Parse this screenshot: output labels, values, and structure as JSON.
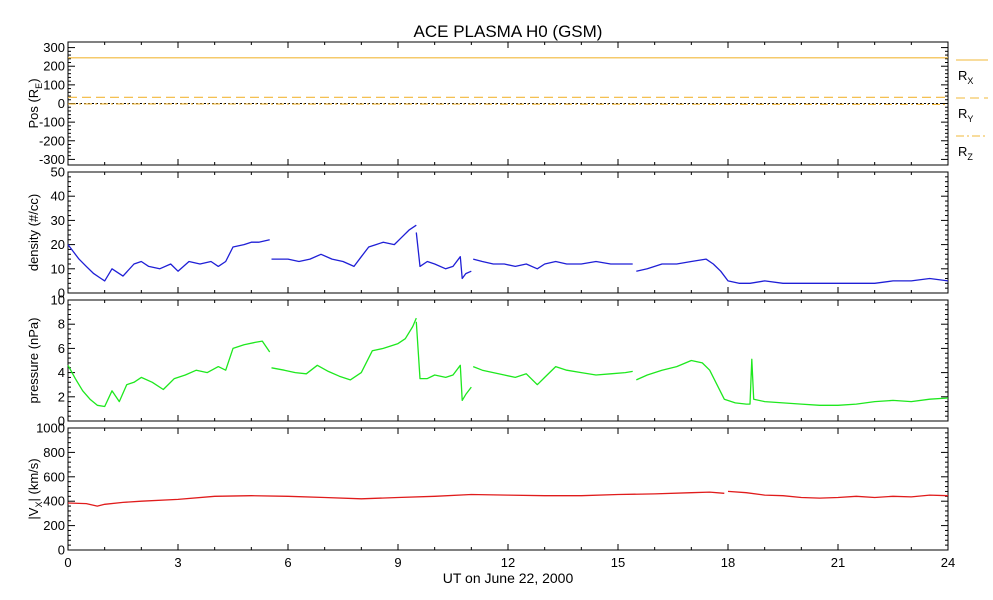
{
  "title": "ACE PLASMA H0 (GSM)",
  "x_axis": {
    "label": "UT on June 22, 2000",
    "ticks": [
      0,
      3,
      6,
      9,
      12,
      15,
      18,
      21,
      24
    ],
    "tick_labels": [
      "0",
      "3",
      "6",
      "9",
      "12",
      "15",
      "18",
      "21",
      "24"
    ],
    "range": [
      0,
      24
    ]
  },
  "colors": {
    "position": "#f2b83a",
    "density": "#1f1fd6",
    "pressure": "#1ee81e",
    "velocity": "#e01c1c",
    "axes": "#000000"
  },
  "chart_data": [
    {
      "type": "line",
      "panel": "position",
      "ylabel": "Pos (RE)",
      "ylabel_main": "Pos (R",
      "ylabel_sub": "E",
      "ylabel_end": ")",
      "ylim": [
        -330,
        330
      ],
      "yticks": [
        300,
        200,
        100,
        0,
        -100,
        -200,
        -300
      ],
      "ytick_labels": [
        "300",
        "200",
        "100",
        "0",
        "-100",
        "-200",
        "-300"
      ],
      "x": [
        0,
        24
      ],
      "series": [
        {
          "name": "RX",
          "label_main": "R",
          "label_sub": "X",
          "style": "solid",
          "color": "#f2b83a",
          "values": [
            245,
            245
          ]
        },
        {
          "name": "RY",
          "label_main": "R",
          "label_sub": "Y",
          "style": "dashed",
          "color": "#f2b83a",
          "values": [
            33,
            33
          ]
        },
        {
          "name": "RZ",
          "label_main": "R",
          "label_sub": "Z",
          "style": "dashdot",
          "color": "#f2b83a",
          "values": [
            -2,
            -5
          ]
        }
      ],
      "zero_line": true
    },
    {
      "type": "line",
      "panel": "density",
      "ylabel": "density (#/cc)",
      "ylim": [
        0,
        50
      ],
      "yticks": [
        50,
        40,
        30,
        20,
        10,
        0
      ],
      "ytick_labels": [
        "50",
        "40",
        "30",
        "20",
        "10",
        "0"
      ],
      "series": [
        {
          "name": "",
          "color": "#1f1fd6",
          "segments": [
            {
              "x": [
                0,
                0.15,
                0.3,
                0.5,
                0.7,
                0.9,
                1.0,
                1.2,
                1.5,
                1.8,
                2.0,
                2.2,
                2.5,
                2.8,
                3.0,
                3.3,
                3.6,
                3.9,
                4.1,
                4.3,
                4.5,
                4.8,
                5.0,
                5.2,
                5.5
              ],
              "y": [
                20,
                17,
                14,
                11,
                8,
                6,
                5,
                10,
                7,
                12,
                13,
                11,
                10,
                12,
                9,
                13,
                12,
                13,
                11,
                13,
                19,
                20,
                21,
                21,
                22
              ]
            },
            {
              "x": [
                5.55,
                6.0,
                6.3,
                6.6,
                6.9,
                7.2,
                7.5,
                7.8,
                8.0,
                8.2,
                8.4,
                8.6,
                8.9,
                9.1,
                9.3,
                9.5
              ],
              "y": [
                14,
                14,
                13,
                14,
                16,
                14,
                13,
                11,
                15,
                19,
                20,
                21,
                20,
                23,
                26,
                28
              ]
            },
            {
              "x": [
                9.5,
                9.6,
                9.8,
                10.0,
                10.3,
                10.5,
                10.7,
                10.75,
                10.85,
                11.0
              ],
              "y": [
                25,
                11,
                13,
                12,
                10,
                11,
                15,
                6,
                8,
                9
              ]
            },
            {
              "x": [
                11.05,
                11.3,
                11.6,
                11.9,
                12.2,
                12.5,
                12.8,
                13.0,
                13.3,
                13.6,
                14.0,
                14.4,
                14.8,
                15.2,
                15.4
              ],
              "y": [
                14,
                13,
                12,
                12,
                11,
                12,
                10,
                12,
                13,
                12,
                12,
                13,
                12,
                12,
                12
              ]
            },
            {
              "x": [
                15.5,
                15.8,
                16.2,
                16.6,
                17.0,
                17.4,
                17.6,
                17.8,
                18.0,
                18.3,
                18.6,
                19.0,
                19.5,
                20.0,
                20.5,
                21.0,
                21.5,
                22.0,
                22.5,
                23.0,
                23.5,
                24.0
              ],
              "y": [
                9,
                10,
                12,
                12,
                13,
                14,
                12,
                9,
                5,
                4,
                4,
                5,
                4,
                4,
                4,
                4,
                4,
                4,
                5,
                5,
                6,
                5
              ]
            }
          ]
        }
      ]
    },
    {
      "type": "line",
      "panel": "pressure",
      "ylabel": "pressure (nPa)",
      "ylim": [
        0,
        10
      ],
      "yticks": [
        10,
        8,
        6,
        4,
        2,
        0
      ],
      "ytick_labels": [
        "10",
        "8",
        "6",
        "4",
        "2",
        "0"
      ],
      "series": [
        {
          "name": "",
          "color": "#1ee81e",
          "segments": [
            {
              "x": [
                0,
                0.2,
                0.4,
                0.6,
                0.8,
                1.0,
                1.2,
                1.4,
                1.6,
                1.8,
                2.0,
                2.3,
                2.6,
                2.9,
                3.2,
                3.5,
                3.8,
                4.1,
                4.3,
                4.5,
                4.8,
                5.1,
                5.3,
                5.5
              ],
              "y": [
                4.6,
                3.5,
                2.5,
                1.8,
                1.3,
                1.2,
                2.5,
                1.6,
                3.0,
                3.2,
                3.6,
                3.2,
                2.6,
                3.5,
                3.8,
                4.2,
                4.0,
                4.5,
                4.2,
                6.0,
                6.3,
                6.5,
                6.6,
                5.7
              ]
            },
            {
              "x": [
                5.55,
                5.9,
                6.2,
                6.5,
                6.8,
                7.1,
                7.4,
                7.7,
                8.0,
                8.3,
                8.6,
                8.8,
                9.0,
                9.2,
                9.4,
                9.5
              ],
              "y": [
                4.4,
                4.2,
                4.0,
                3.9,
                4.6,
                4.1,
                3.7,
                3.4,
                4.0,
                5.8,
                6.0,
                6.2,
                6.4,
                6.8,
                7.8,
                8.5
              ]
            },
            {
              "x": [
                9.5,
                9.6,
                9.8,
                10.0,
                10.3,
                10.5,
                10.7,
                10.75,
                10.85,
                11.0
              ],
              "y": [
                8.2,
                3.5,
                3.5,
                3.8,
                3.6,
                3.8,
                4.6,
                1.7,
                2.2,
                2.8
              ]
            },
            {
              "x": [
                11.05,
                11.3,
                11.6,
                11.9,
                12.2,
                12.5,
                12.8,
                13.0,
                13.3,
                13.6,
                14.0,
                14.4,
                14.8,
                15.2,
                15.4
              ],
              "y": [
                4.5,
                4.2,
                4.0,
                3.8,
                3.6,
                3.9,
                3.0,
                3.6,
                4.5,
                4.2,
                4.0,
                3.8,
                3.9,
                4.0,
                4.1
              ]
            },
            {
              "x": [
                15.5,
                15.8,
                16.2,
                16.6,
                17.0,
                17.3,
                17.5,
                17.7,
                17.9,
                18.2,
                18.5,
                18.6,
                18.65,
                18.7,
                19.0,
                19.5,
                20.0,
                20.5,
                21.0,
                21.5,
                22.0,
                22.5,
                23.0,
                23.5,
                24.0
              ],
              "y": [
                3.4,
                3.8,
                4.2,
                4.5,
                5.0,
                4.8,
                4.2,
                3.0,
                1.8,
                1.5,
                1.4,
                1.4,
                5.1,
                1.8,
                1.6,
                1.5,
                1.4,
                1.3,
                1.3,
                1.4,
                1.6,
                1.7,
                1.6,
                1.8,
                1.9
              ]
            }
          ]
        }
      ]
    },
    {
      "type": "line",
      "panel": "velocity",
      "ylabel": "|VX| (km/s)",
      "ylabel_main": "|V",
      "ylabel_sub": "X",
      "ylabel_end": "| (km/s)",
      "ylim": [
        0,
        1000
      ],
      "yticks": [
        1000,
        800,
        600,
        400,
        200,
        0
      ],
      "ytick_labels": [
        "1000",
        "800",
        "600",
        "400",
        "200",
        "0"
      ],
      "series": [
        {
          "name": "",
          "color": "#e01c1c",
          "segments": [
            {
              "x": [
                0,
                0.5,
                0.8,
                1.0,
                1.5,
                2.0,
                3.0,
                4.0,
                5.0,
                6.0,
                7.0,
                8.0,
                9.0,
                10.0,
                11.0,
                12.0,
                13.0,
                14.0,
                15.0,
                16.0,
                17.0,
                17.5,
                17.9
              ],
              "y": [
                385,
                380,
                360,
                375,
                390,
                400,
                415,
                440,
                445,
                440,
                430,
                420,
                430,
                440,
                455,
                450,
                445,
                445,
                455,
                460,
                470,
                475,
                465
              ]
            },
            {
              "x": [
                18.0,
                18.5,
                19.0,
                19.5,
                20.0,
                20.5,
                21.0,
                21.5,
                22.0,
                22.5,
                23.0,
                23.5,
                24.0
              ],
              "y": [
                480,
                470,
                450,
                445,
                430,
                425,
                430,
                440,
                430,
                440,
                435,
                450,
                445
              ]
            }
          ]
        }
      ]
    }
  ]
}
